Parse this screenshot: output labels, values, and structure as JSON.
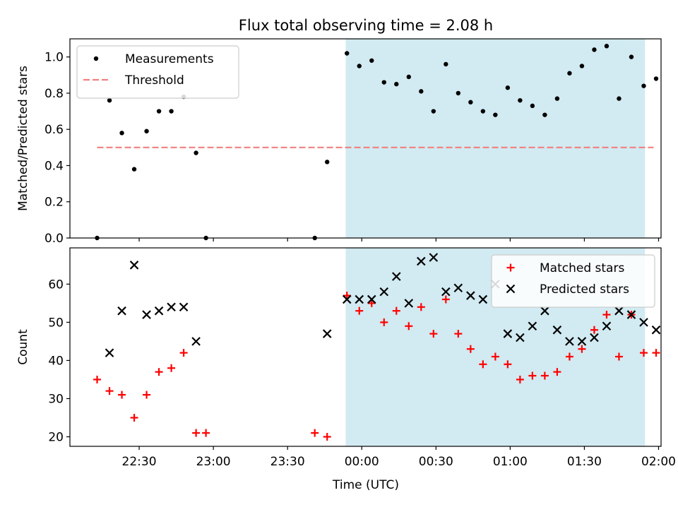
{
  "chart_data": {
    "title": "Flux total observing time = 2.08 h",
    "type": "scatter",
    "xlabel": "Time (UTC)",
    "x_tick_labels": [
      "22:30",
      "23:00",
      "23:30",
      "00:00",
      "00:30",
      "01:00",
      "01:30",
      "02:00"
    ],
    "x_ticks_minutes": [
      -90,
      -60,
      -30,
      0,
      30,
      60,
      90,
      120
    ],
    "x_range_minutes": [
      -118,
      121
    ],
    "shaded_interval_minutes": [
      -6.5,
      114.5
    ],
    "shade_color": "#add8e6",
    "panels": [
      {
        "ylabel": "Matched/Predicted stars",
        "ylim": [
          0,
          1.1
        ],
        "y_ticks": [
          0.0,
          0.2,
          0.4,
          0.6,
          0.8,
          1.0
        ],
        "y_tick_labels": [
          "0.0",
          "0.2",
          "0.4",
          "0.6",
          "0.8",
          "1.0"
        ],
        "legend_position": "top-left",
        "series": [
          {
            "name": "Measurements",
            "marker": "dot",
            "color": "#000000",
            "x": [
              -107,
              -102,
              -97,
              -92,
              -87,
              -82,
              -77,
              -72,
              -67,
              -63,
              -19,
              -14,
              -6,
              -1,
              4,
              9,
              14,
              19,
              24,
              29,
              34,
              39,
              44,
              49,
              54,
              59,
              64,
              69,
              74,
              79,
              84,
              89,
              94,
              99,
              104,
              109,
              114,
              119
            ],
            "y": [
              0.0,
              0.76,
              0.58,
              0.38,
              0.59,
              0.7,
              0.7,
              0.78,
              0.47,
              0.0,
              0.0,
              0.42,
              1.02,
              0.95,
              0.98,
              0.86,
              0.85,
              0.89,
              0.81,
              0.7,
              0.96,
              0.8,
              0.75,
              0.7,
              0.68,
              0.83,
              0.76,
              0.73,
              0.68,
              0.77,
              0.91,
              0.95,
              1.04,
              1.06,
              0.77,
              1.0,
              0.84,
              0.88
            ]
          },
          {
            "name": "Threshold",
            "marker": "dashed-line",
            "color": "#f08080",
            "x": [
              -107,
              118
            ],
            "y": [
              0.5,
              0.5
            ]
          }
        ]
      },
      {
        "ylabel": "Count",
        "ylim": [
          17.5,
          69.5
        ],
        "y_ticks": [
          20,
          30,
          40,
          50,
          60
        ],
        "y_tick_labels": [
          "20",
          "30",
          "40",
          "50",
          "60"
        ],
        "legend_position": "top-right",
        "series": [
          {
            "name": "Matched stars",
            "marker": "plus",
            "color": "#ff0000",
            "x": [
              -107,
              -102,
              -97,
              -92,
              -87,
              -82,
              -77,
              -72,
              -67,
              -63,
              -19,
              -14,
              -6,
              -1,
              4,
              9,
              14,
              19,
              24,
              29,
              34,
              39,
              44,
              49,
              54,
              59,
              64,
              69,
              74,
              79,
              84,
              89,
              94,
              99,
              104,
              109,
              114,
              119
            ],
            "y": [
              35,
              32,
              31,
              25,
              31,
              37,
              38,
              42,
              21,
              21,
              21,
              20,
              57,
              53,
              55,
              50,
              53,
              49,
              54,
              47,
              56,
              47,
              43,
              39,
              41,
              39,
              35,
              36,
              36,
              37,
              41,
              43,
              48,
              52,
              41,
              52,
              42,
              42
            ]
          },
          {
            "name": "Predicted stars",
            "marker": "x",
            "color": "#000000",
            "x": [
              -102,
              -97,
              -92,
              -87,
              -82,
              -77,
              -72,
              -67,
              -14,
              -6,
              -1,
              4,
              9,
              14,
              19,
              24,
              29,
              34,
              39,
              44,
              49,
              54,
              59,
              64,
              69,
              74,
              79,
              84,
              89,
              94,
              99,
              104,
              109,
              114,
              119
            ],
            "y": [
              42,
              53,
              65,
              52,
              53,
              54,
              54,
              45,
              47,
              56,
              56,
              56,
              58,
              62,
              55,
              66,
              67,
              58,
              59,
              57,
              56,
              60,
              47,
              46,
              49,
              53,
              48,
              45,
              45,
              46,
              49,
              53,
              52,
              50,
              48
            ]
          }
        ]
      }
    ]
  }
}
